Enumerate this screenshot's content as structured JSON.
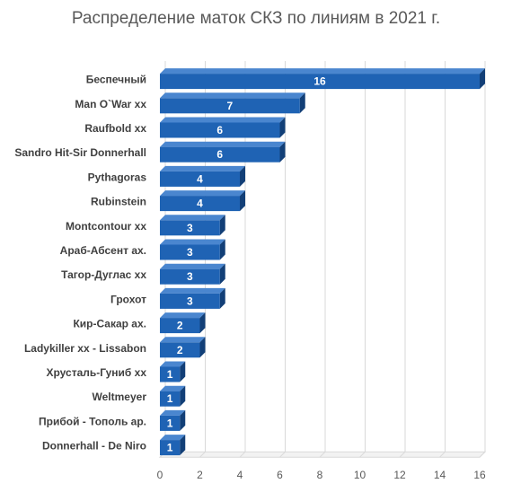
{
  "chart_data": {
    "type": "bar",
    "orientation": "horizontal",
    "title": "Распределение маток СКЗ по линиям в 2021 г.",
    "categories": [
      "Беспечный",
      "Man O`War xx",
      "Raufbold xx",
      "Sandro Hit-Sir Donnerhall",
      "Pythagoras",
      "Rubinstein",
      "Montcontour xx",
      "Араб-Абсент ах.",
      "Тагор-Дуглас хх",
      "Грохот",
      "Кир-Сакар ах.",
      "Ladykiller xx - Lissabon",
      "Хрусталь-Гуниб хх",
      "Weltmeyer",
      "Прибой - Тополь ар.",
      "Donnerhall - De Niro"
    ],
    "values": [
      16,
      7,
      6,
      6,
      4,
      4,
      3,
      3,
      3,
      3,
      2,
      2,
      1,
      1,
      1,
      1
    ],
    "xlim": [
      0,
      16
    ],
    "xticks": [
      "0",
      "2",
      "4",
      "6",
      "8",
      "10",
      "12",
      "14",
      "16"
    ],
    "grid": true,
    "bar_color": "#1f63b4",
    "grid_color": "#d9d9d9",
    "data_labels": true
  }
}
